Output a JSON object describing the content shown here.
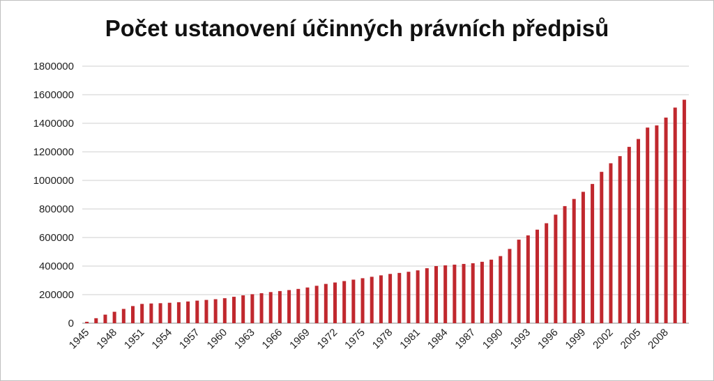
{
  "chart_data": {
    "type": "bar",
    "title": "Počet ustanovení účinných právních předpisů",
    "xlabel": "",
    "ylabel": "",
    "ylim": [
      0,
      1800000
    ],
    "yticks": [
      "0",
      "200000",
      "400000",
      "600000",
      "800000",
      "1000000",
      "1200000",
      "1400000",
      "1600000",
      "1800000"
    ],
    "grid": true,
    "legend": "none",
    "bar_color": "#c0282e",
    "categories": [
      "1945",
      "1946",
      "1947",
      "1948",
      "1949",
      "1950",
      "1951",
      "1952",
      "1953",
      "1954",
      "1955",
      "1956",
      "1957",
      "1958",
      "1959",
      "1960",
      "1961",
      "1962",
      "1963",
      "1964",
      "1965",
      "1966",
      "1967",
      "1968",
      "1969",
      "1970",
      "1971",
      "1972",
      "1973",
      "1974",
      "1975",
      "1976",
      "1977",
      "1978",
      "1979",
      "1980",
      "1981",
      "1982",
      "1983",
      "1984",
      "1985",
      "1986",
      "1987",
      "1988",
      "1989",
      "1990",
      "1991",
      "1992",
      "1993",
      "1994",
      "1995",
      "1996",
      "1997",
      "1998",
      "1999",
      "2000",
      "2001",
      "2002",
      "2003",
      "2004",
      "2005",
      "2006",
      "2007",
      "2008",
      "2009",
      "2010"
    ],
    "xtick_labels": [
      "1945",
      "1948",
      "1951",
      "1954",
      "1957",
      "1960",
      "1963",
      "1966",
      "1969",
      "1972",
      "1975",
      "1978",
      "1981",
      "1984",
      "1987",
      "1990",
      "1993",
      "1996",
      "1999",
      "2002",
      "2005",
      "2008"
    ],
    "values": [
      10000,
      35000,
      60000,
      80000,
      100000,
      120000,
      135000,
      138000,
      140000,
      143000,
      147000,
      152000,
      158000,
      163000,
      168000,
      175000,
      185000,
      195000,
      203000,
      210000,
      218000,
      225000,
      232000,
      240000,
      250000,
      262000,
      275000,
      285000,
      295000,
      305000,
      315000,
      325000,
      335000,
      345000,
      352000,
      360000,
      370000,
      385000,
      400000,
      405000,
      410000,
      415000,
      420000,
      430000,
      445000,
      470000,
      520000,
      585000,
      615000,
      655000,
      700000,
      760000,
      820000,
      870000,
      920000,
      975000,
      1060000,
      1120000,
      1170000,
      1235000,
      1290000,
      1370000,
      1385000,
      1440000,
      1510000,
      1565000
    ]
  }
}
